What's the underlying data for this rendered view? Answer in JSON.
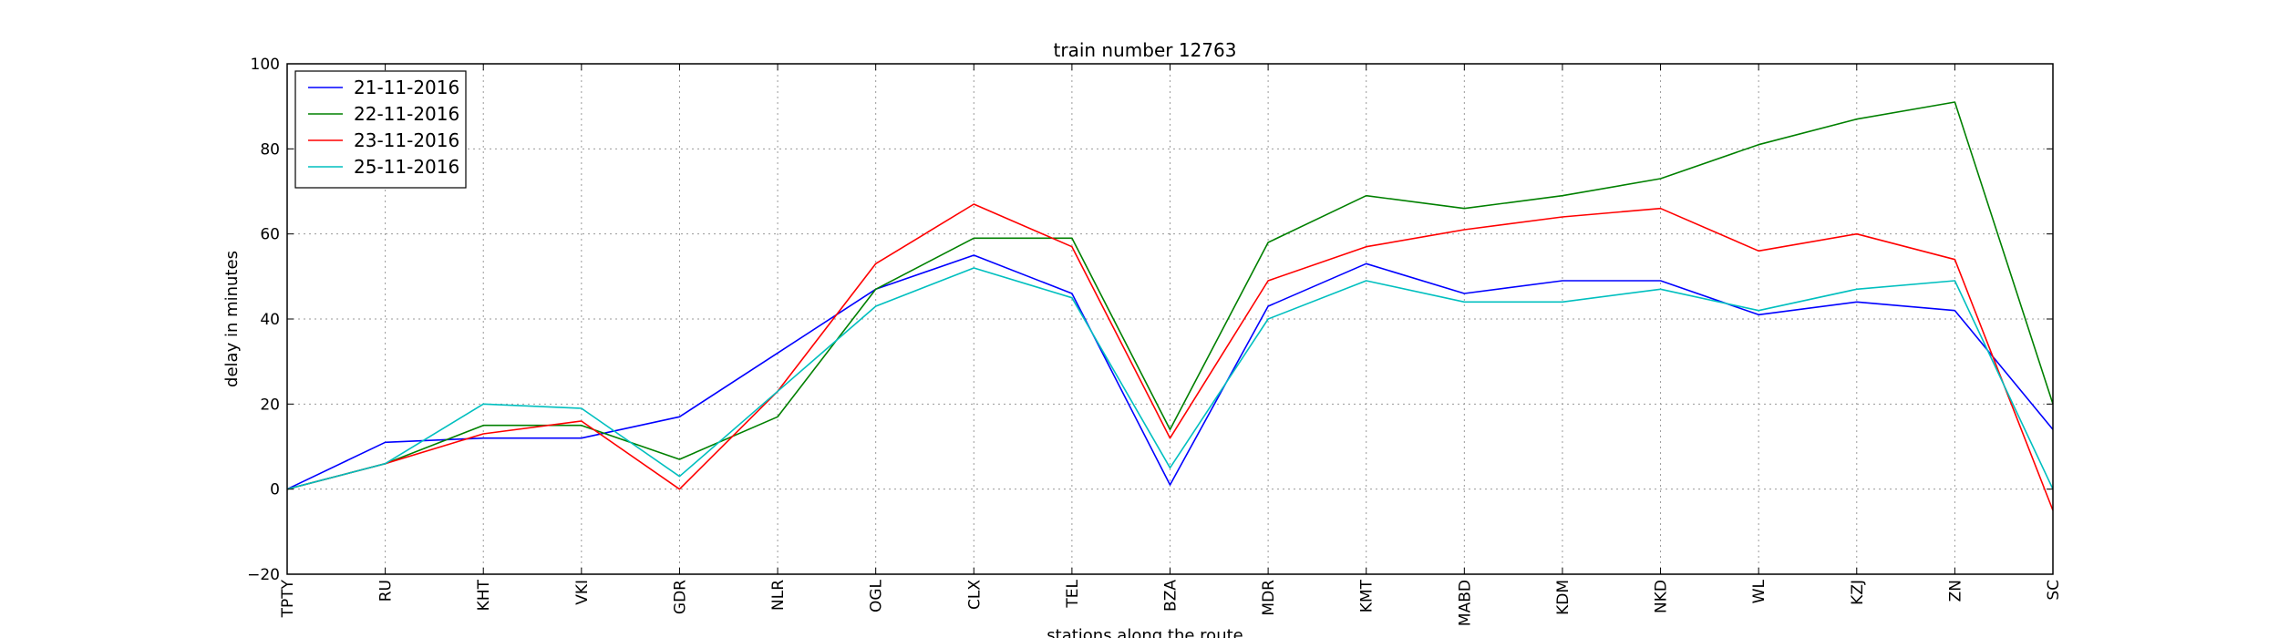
{
  "chart_data": {
    "type": "line",
    "title": "train number 12763",
    "xlabel": "stations along the route",
    "ylabel": "delay in minutes",
    "ylim": [
      -20,
      100
    ],
    "yticks": [
      -20,
      0,
      20,
      40,
      60,
      80,
      100
    ],
    "grid": true,
    "legend_position": "top-left",
    "categories": [
      "TPTY",
      "RU",
      "KHT",
      "VKI",
      "GDR",
      "NLR",
      "OGL",
      "CLX",
      "TEL",
      "BZA",
      "MDR",
      "KMT",
      "MABD",
      "KDM",
      "NKD",
      "WL",
      "KZJ",
      "ZN",
      "SC"
    ],
    "series": [
      {
        "name": "21-11-2016",
        "color": "#0000ff",
        "values": [
          0,
          11,
          12,
          12,
          17,
          32,
          47,
          55,
          46,
          1,
          43,
          53,
          46,
          49,
          49,
          41,
          44,
          42,
          14
        ]
      },
      {
        "name": "22-11-2016",
        "color": "#008000",
        "values": [
          0,
          6,
          15,
          15,
          7,
          17,
          47,
          59,
          59,
          14,
          58,
          69,
          66,
          69,
          73,
          81,
          87,
          91,
          20
        ]
      },
      {
        "name": "23-11-2016",
        "color": "#ff0000",
        "values": [
          0,
          6,
          13,
          16,
          0,
          23,
          53,
          67,
          57,
          12,
          49,
          57,
          61,
          64,
          66,
          56,
          60,
          54,
          -5
        ]
      },
      {
        "name": "25-11-2016",
        "color": "#00bfbf",
        "values": [
          0,
          6,
          20,
          19,
          3,
          23,
          43,
          52,
          45,
          5,
          40,
          49,
          44,
          44,
          47,
          42,
          47,
          49,
          0
        ]
      }
    ]
  }
}
